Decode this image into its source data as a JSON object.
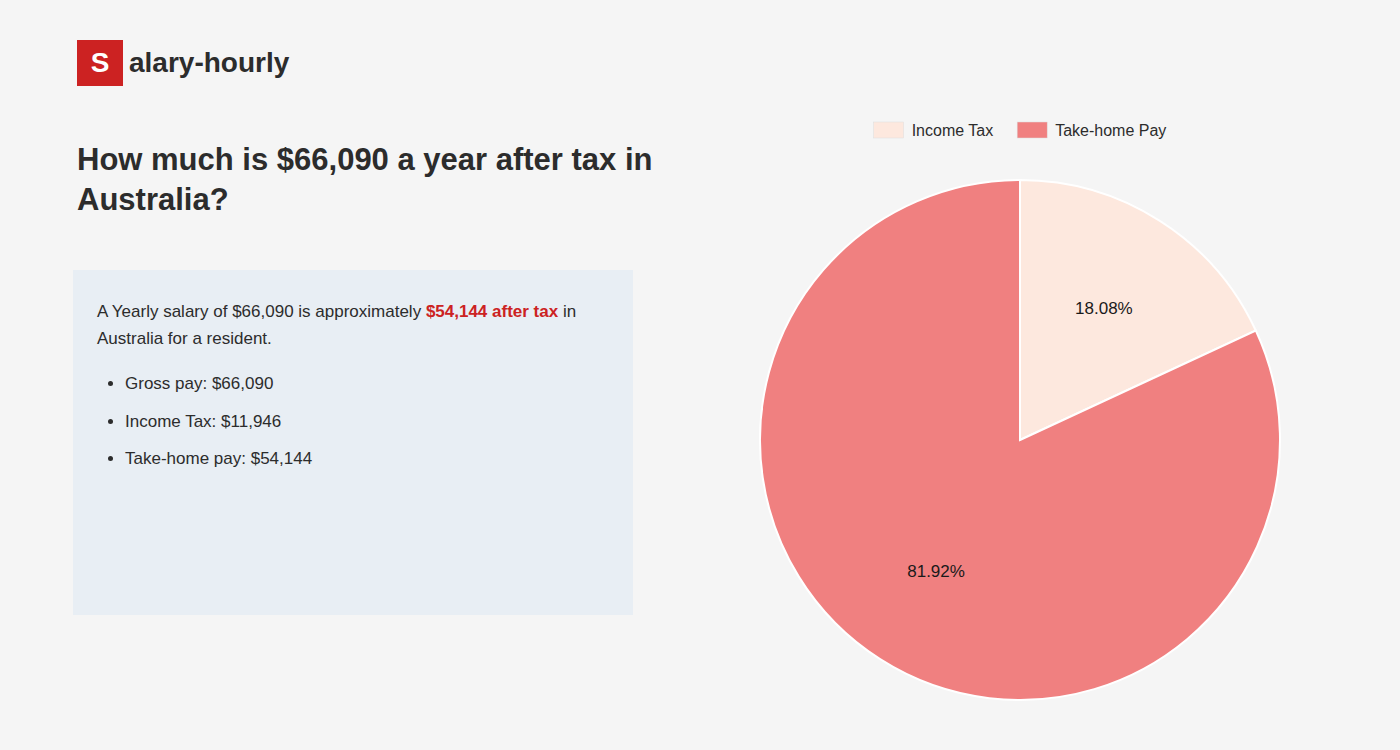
{
  "chart_data": {
    "type": "pie",
    "title": "How much is $66,090 a year after tax in\nAustralia?",
    "categories": [
      "Income Tax",
      "Take-home Pay"
    ],
    "values": [
      18.08,
      81.92
    ],
    "value_labels": [
      "18.08%",
      "81.92%"
    ],
    "colors": [
      "#fde8de",
      "#f08080"
    ],
    "data_labels": true,
    "legend": "top",
    "annotations": [
      {
        "text": "S",
        "color": "#cc2222"
      },
      {
        "text": "alary-hourly"
      },
      {
        "text": "A Yearly salary of $66,090 is approximately "
      },
      {
        "text": "$54,144 after tax",
        "color": "#cc2222"
      },
      {
        "text": " in"
      },
      {
        "text": "Australia for a resident."
      },
      {
        "text": "Gross pay: $66,090"
      },
      {
        "text": "Income Tax: $11,946"
      },
      {
        "text": "Take-home pay: $54,144"
      }
    ]
  }
}
